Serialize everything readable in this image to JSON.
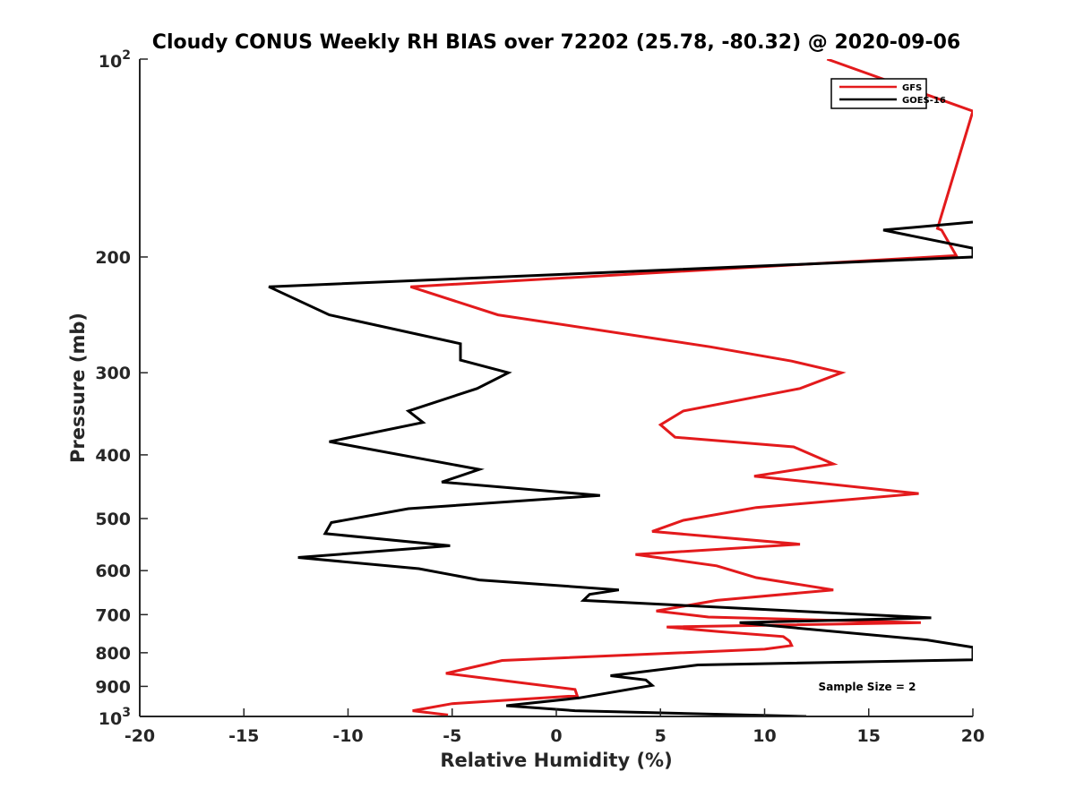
{
  "chart_data": {
    "type": "line",
    "title": "Cloudy CONUS Weekly RH BIAS over 72202 (25.78, -80.32) @ 2020-09-06",
    "xlabel": "Relative Humidity (%)",
    "ylabel": "Pressure (mb)",
    "xlim": [
      -20,
      20
    ],
    "ylim": [
      100,
      1000
    ],
    "yscale": "log",
    "y_reversed": true,
    "grid": false,
    "legend_position": "top-right",
    "x_ticks": [
      "-20",
      "-15",
      "-10",
      "-5",
      "0",
      "5",
      "10",
      "15",
      "20"
    ],
    "y_ticks": [
      {
        "value": 100,
        "base": "10",
        "exp": "2"
      },
      {
        "value": 200,
        "label": "200"
      },
      {
        "value": 300,
        "label": "300"
      },
      {
        "value": 400,
        "label": "400"
      },
      {
        "value": 500,
        "label": "500"
      },
      {
        "value": 600,
        "label": "600"
      },
      {
        "value": 700,
        "label": "700"
      },
      {
        "value": 800,
        "label": "800"
      },
      {
        "value": 900,
        "label": "900"
      },
      {
        "value": 1000,
        "base": "10",
        "exp": "3"
      }
    ],
    "annotation": "Sample Size = 2",
    "series": [
      {
        "name": "GFS",
        "color": "#e31a1c",
        "x": [
          13.0,
          20.0,
          18.3,
          18.5,
          19.2,
          -7.0,
          -2.8,
          7.4,
          11.3,
          13.7,
          11.7,
          6.1,
          5.0,
          5.7,
          11.4,
          13.3,
          9.5,
          17.4,
          9.6,
          6.1,
          4.6,
          11.7,
          3.8,
          7.7,
          9.6,
          13.3,
          7.7,
          4.8,
          7.3,
          17.5,
          5.3,
          7.8,
          10.9,
          11.2,
          11.3,
          10.0,
          -2.6,
          -5.3,
          0.9,
          1.0,
          -5.0,
          -6.9,
          -5.2
        ],
        "y": [
          100,
          120,
          181,
          182,
          199,
          222,
          245,
          274,
          288,
          300,
          317,
          343,
          360,
          376,
          389,
          413,
          431,
          458,
          481,
          503,
          523,
          547,
          567,
          590,
          615,
          642,
          666,
          691,
          706,
          720,
          731,
          743,
          756,
          768,
          780,
          790,
          822,
          860,
          910,
          930,
          956,
          980,
          995
        ]
      },
      {
        "name": "GOES-16",
        "color": "#000000",
        "x": [
          20.0,
          15.7,
          20.0,
          20.0,
          -13.8,
          -10.9,
          -4.6,
          -4.6,
          -2.3,
          -3.8,
          -7.1,
          -6.4,
          -10.9,
          -3.7,
          -5.5,
          2.1,
          -7.1,
          -10.8,
          -11.1,
          -5.1,
          -12.4,
          -6.6,
          -3.7,
          3.0,
          1.6,
          1.3,
          18.0,
          8.8,
          10.4,
          17.8,
          20.0,
          20.0,
          6.8,
          2.6,
          4.3,
          4.6,
          1.1,
          -2.4,
          0.9,
          12.0
        ],
        "y": [
          177,
          182,
          194,
          200,
          222,
          245,
          271,
          287,
          300,
          317,
          343,
          357,
          382,
          421,
          440,
          461,
          483,
          507,
          527,
          550,
          573,
          596,
          620,
          642,
          652,
          666,
          708,
          720,
          728,
          765,
          785,
          820,
          835,
          867,
          880,
          897,
          937,
          963,
          980,
          1000
        ]
      }
    ]
  }
}
